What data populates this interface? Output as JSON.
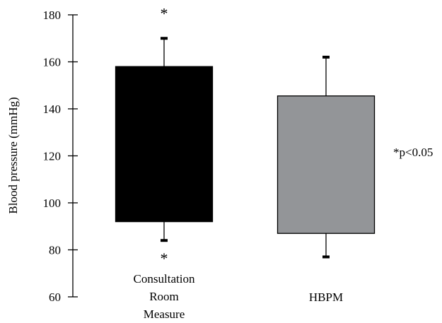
{
  "chart_data": {
    "type": "box",
    "ylabel": "Blood pressure (mmHg)",
    "ylim": [
      60,
      180
    ],
    "yticks": [
      60,
      80,
      100,
      120,
      140,
      160,
      180
    ],
    "grid": false,
    "categories": [
      [
        "Consultation",
        "Room",
        "Measure"
      ],
      [
        "HBPM"
      ]
    ],
    "boxes": [
      {
        "low": 84,
        "q1": 92,
        "q3": 158,
        "high": 170,
        "color": "#000000",
        "star_above": "*",
        "star_below": "*"
      },
      {
        "low": 77,
        "q1": 87,
        "q3": 145.5,
        "high": 162,
        "color": "#939598",
        "star_above": "",
        "star_below": ""
      }
    ],
    "note": "*p<0.05"
  }
}
